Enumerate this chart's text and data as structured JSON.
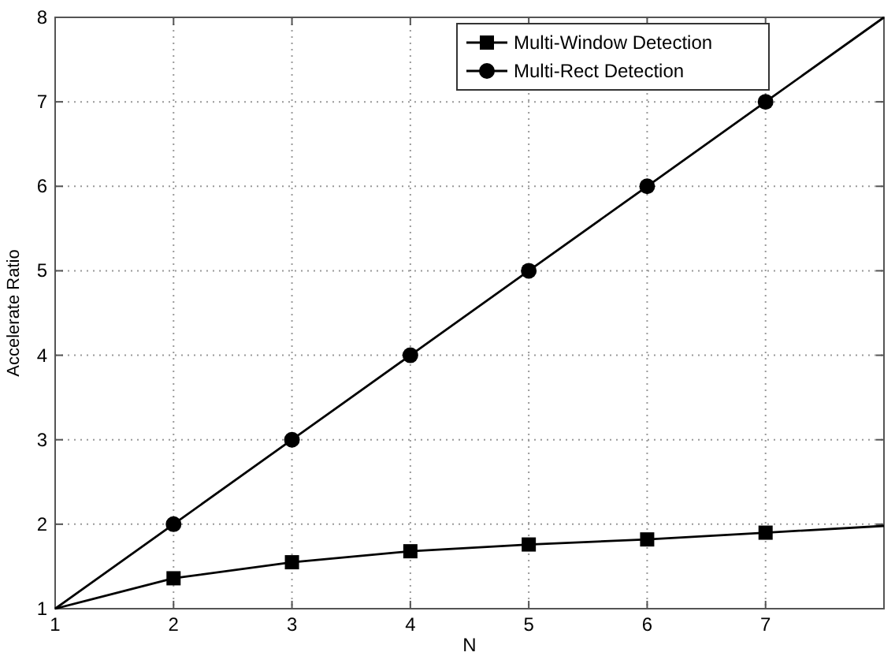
{
  "chart_data": {
    "type": "line",
    "xlabel": "N",
    "ylabel": "Accelerate Ratio",
    "x": [
      1,
      2,
      3,
      4,
      5,
      6,
      7,
      8
    ],
    "series": [
      {
        "name": "Multi-Window Detection",
        "color": "#000000",
        "marker": "square",
        "values": [
          1,
          1.36,
          1.55,
          1.68,
          1.76,
          1.82,
          1.9,
          1.98
        ]
      },
      {
        "name": "Multi-Rect Detection",
        "color": "#000000",
        "marker": "circle",
        "values": [
          1,
          2,
          3,
          4,
          5,
          6,
          7,
          8
        ]
      }
    ],
    "xlim": [
      1,
      8
    ],
    "xticks": [
      1,
      2,
      3,
      4,
      5,
      6,
      7
    ],
    "ylim": [
      1,
      8
    ],
    "yticks": [
      1,
      2,
      3,
      4,
      5,
      6,
      7,
      8
    ],
    "grid": true,
    "legend": "top right",
    "line_style": "solid"
  }
}
